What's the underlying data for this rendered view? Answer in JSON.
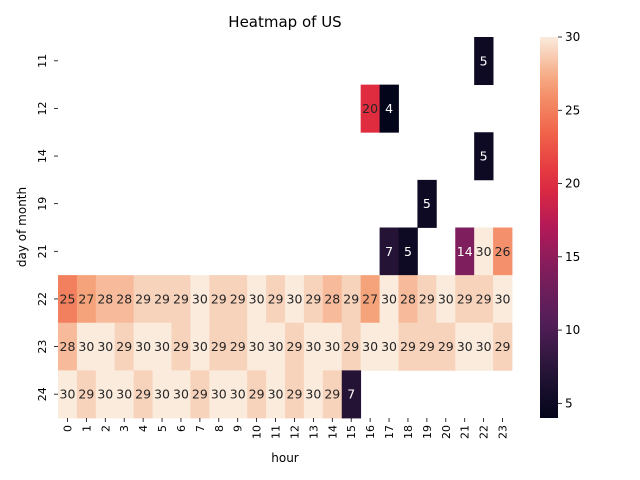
{
  "chart_data": {
    "type": "heatmap",
    "title": "Heatmap of US",
    "xlabel": "hour",
    "ylabel": "day of month",
    "x": [
      "0",
      "1",
      "2",
      "3",
      "4",
      "5",
      "6",
      "7",
      "8",
      "9",
      "10",
      "11",
      "12",
      "13",
      "14",
      "15",
      "16",
      "17",
      "18",
      "19",
      "20",
      "21",
      "22",
      "23"
    ],
    "y": [
      "11",
      "12",
      "14",
      "19",
      "21",
      "22",
      "23",
      "24"
    ],
    "values": [
      [
        null,
        null,
        null,
        null,
        null,
        null,
        null,
        null,
        null,
        null,
        null,
        null,
        null,
        null,
        null,
        null,
        null,
        null,
        null,
        null,
        null,
        null,
        5,
        null
      ],
      [
        null,
        null,
        null,
        null,
        null,
        null,
        null,
        null,
        null,
        null,
        null,
        null,
        null,
        null,
        null,
        null,
        20,
        4,
        null,
        null,
        null,
        null,
        null,
        null
      ],
      [
        null,
        null,
        null,
        null,
        null,
        null,
        null,
        null,
        null,
        null,
        null,
        null,
        null,
        null,
        null,
        null,
        null,
        null,
        null,
        null,
        null,
        null,
        5,
        null
      ],
      [
        null,
        null,
        null,
        null,
        null,
        null,
        null,
        null,
        null,
        null,
        null,
        null,
        null,
        null,
        null,
        null,
        null,
        null,
        null,
        5,
        null,
        null,
        null,
        null
      ],
      [
        null,
        null,
        null,
        null,
        null,
        null,
        null,
        null,
        null,
        null,
        null,
        null,
        null,
        null,
        null,
        null,
        null,
        7,
        5,
        null,
        null,
        14,
        30,
        26
      ],
      [
        25,
        27,
        28,
        28,
        29,
        29,
        29,
        30,
        29,
        29,
        30,
        29,
        30,
        29,
        28,
        29,
        27,
        30,
        28,
        29,
        30,
        29,
        29,
        30
      ],
      [
        28,
        30,
        30,
        29,
        30,
        30,
        29,
        30,
        29,
        29,
        30,
        30,
        29,
        30,
        30,
        29,
        30,
        30,
        29,
        29,
        29,
        30,
        30,
        29
      ],
      [
        30,
        29,
        30,
        30,
        29,
        30,
        30,
        29,
        30,
        30,
        29,
        30,
        29,
        30,
        29,
        7,
        null,
        null,
        null,
        null,
        null,
        null,
        null,
        null
      ]
    ],
    "colorbar": {
      "min": 4,
      "max": 30,
      "ticks": [
        5,
        10,
        15,
        20,
        25,
        30
      ]
    },
    "colormap": "rocket",
    "grid": false
  }
}
